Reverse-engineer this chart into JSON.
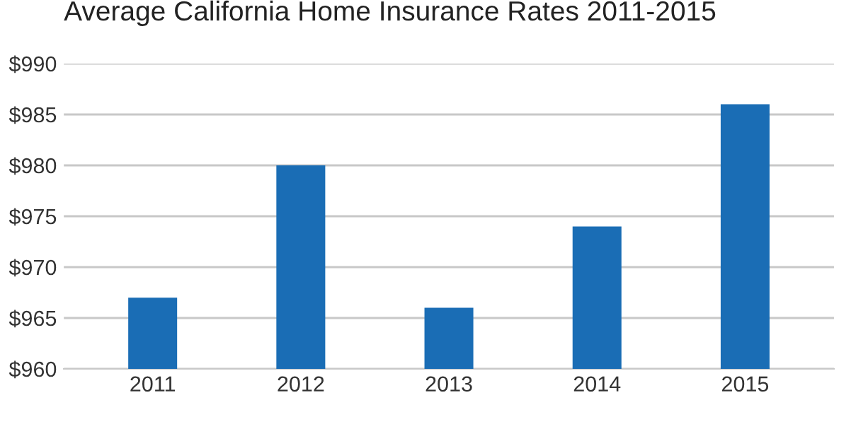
{
  "chart_data": {
    "type": "bar",
    "title": "Average California Home Insurance Rates 2011-2015",
    "categories": [
      "2011",
      "2012",
      "2013",
      "2014",
      "2015"
    ],
    "values": [
      967,
      980,
      966,
      974,
      986
    ],
    "color": "#1a6db5",
    "ylim": [
      960,
      990
    ],
    "yticks": [
      {
        "value": 960,
        "label": "$960"
      },
      {
        "value": 965,
        "label": "$965"
      },
      {
        "value": 970,
        "label": "$970"
      },
      {
        "value": 975,
        "label": "$975"
      },
      {
        "value": 980,
        "label": "$980"
      },
      {
        "value": 985,
        "label": "$985"
      },
      {
        "value": 990,
        "label": "$990"
      }
    ],
    "grid": "y"
  }
}
